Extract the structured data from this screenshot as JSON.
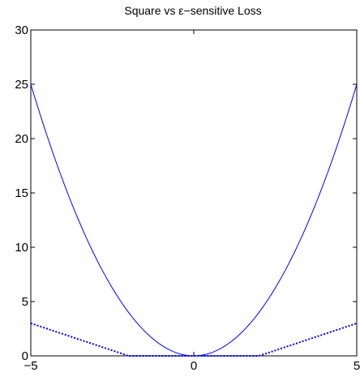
{
  "chart_data": {
    "type": "line",
    "title": "Square vs ε−sensitive Loss",
    "xlabel": "",
    "ylabel": "",
    "xlim": [
      -5,
      5
    ],
    "ylim": [
      0,
      30
    ],
    "x_ticks": [
      -5,
      0,
      5
    ],
    "x_tick_labels": [
      "−5",
      "0",
      "5"
    ],
    "y_ticks": [
      0,
      5,
      10,
      15,
      20,
      25,
      30
    ],
    "y_tick_labels": [
      "0",
      "5",
      "10",
      "15",
      "20",
      "25",
      "30"
    ],
    "grid": false,
    "legend": null,
    "series": [
      {
        "style": "solid",
        "color": "#0000ff",
        "function": "x^2",
        "x": [
          -5,
          -4.5,
          -4,
          -3.5,
          -3,
          -2.5,
          -2,
          -1.5,
          -1,
          -0.5,
          0,
          0.5,
          1,
          1.5,
          2,
          2.5,
          3,
          3.5,
          4,
          4.5,
          5
        ],
        "y": [
          25,
          20.25,
          16,
          12.25,
          9,
          6.25,
          4,
          2.25,
          1,
          0.25,
          0,
          0.25,
          1,
          2.25,
          4,
          6.25,
          9,
          12.25,
          16,
          20.25,
          25
        ]
      },
      {
        "style": "dotted",
        "color": "#0000ff",
        "function": "max(0, |x| - 2)",
        "x": [
          -5,
          -2,
          2,
          5
        ],
        "y": [
          3,
          0,
          0,
          3
        ]
      }
    ]
  }
}
